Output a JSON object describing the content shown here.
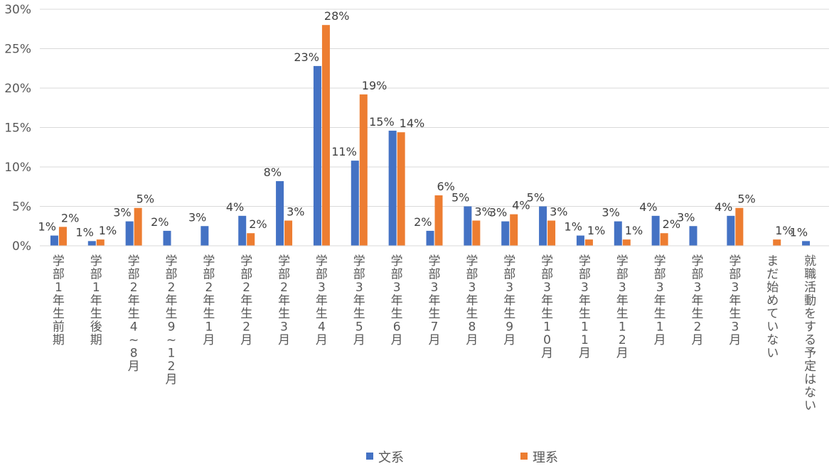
{
  "chart_data": {
    "type": "bar",
    "ylim": [
      0,
      30
    ],
    "ytick_values": [
      0,
      5,
      10,
      15,
      20,
      25,
      30
    ],
    "ytick_labels": [
      "0%",
      "5%",
      "10%",
      "15%",
      "20%",
      "25%",
      "30%"
    ],
    "grid": true,
    "legend_position": "bottom",
    "categories": [
      "学部1年生前期",
      "学部1年生後期",
      "学部2年生4~8月",
      "学部2年生9~12月",
      "学部2年生1月",
      "学部2年生2月",
      "学部2年生3月",
      "学部3年生4月",
      "学部3年生5月",
      "学部3年生6月",
      "学部3年生7月",
      "学部3年生8月",
      "学部3年生9月",
      "学部3年生10月",
      "学部3年生11月",
      "学部3年生12月",
      "学部3年生1月",
      "学部3年生2月",
      "学部3年生3月",
      "まだ始めていない",
      "就職活動をする予定はない"
    ],
    "category_lines": [
      [
        "学",
        "部",
        "1",
        "年",
        "生",
        "前",
        "期"
      ],
      [
        "学",
        "部",
        "1",
        "年",
        "生",
        "後",
        "期"
      ],
      [
        "学",
        "部",
        "2",
        "年",
        "生",
        "4",
        "~",
        "8",
        "月"
      ],
      [
        "学",
        "部",
        "2",
        "年",
        "生",
        "9",
        "~",
        "1",
        "2",
        "月"
      ],
      [
        "学",
        "部",
        "2",
        "年",
        "生",
        "1",
        "月"
      ],
      [
        "学",
        "部",
        "2",
        "年",
        "生",
        "2",
        "月"
      ],
      [
        "学",
        "部",
        "2",
        "年",
        "生",
        "3",
        "月"
      ],
      [
        "学",
        "部",
        "3",
        "年",
        "生",
        "4",
        "月"
      ],
      [
        "学",
        "部",
        "3",
        "年",
        "生",
        "5",
        "月"
      ],
      [
        "学",
        "部",
        "3",
        "年",
        "生",
        "6",
        "月"
      ],
      [
        "学",
        "部",
        "3",
        "年",
        "生",
        "7",
        "月"
      ],
      [
        "学",
        "部",
        "3",
        "年",
        "生",
        "8",
        "月"
      ],
      [
        "学",
        "部",
        "3",
        "年",
        "生",
        "9",
        "月"
      ],
      [
        "学",
        "部",
        "3",
        "年",
        "生",
        "1",
        "0",
        "月"
      ],
      [
        "学",
        "部",
        "3",
        "年",
        "生",
        "1",
        "1",
        "月"
      ],
      [
        "学",
        "部",
        "3",
        "年",
        "生",
        "1",
        "2",
        "月"
      ],
      [
        "学",
        "部",
        "3",
        "年",
        "生",
        "1",
        "月"
      ],
      [
        "学",
        "部",
        "3",
        "年",
        "生",
        "2",
        "月"
      ],
      [
        "学",
        "部",
        "3",
        "年",
        "生",
        "3",
        "月"
      ],
      [
        "ま",
        "だ",
        "始",
        "め",
        "て",
        "い",
        "な",
        "い"
      ],
      [
        "就",
        "職",
        "活",
        "動",
        "を",
        "す",
        "る",
        "予",
        "定",
        "は",
        "な",
        "い"
      ]
    ],
    "series": [
      {
        "name": "文系",
        "color": "#4472C4",
        "values": [
          1.3,
          0.6,
          3.1,
          1.9,
          2.5,
          3.8,
          8.2,
          22.8,
          10.8,
          14.6,
          1.9,
          5.0,
          3.1,
          5.0,
          1.3,
          3.1,
          3.8,
          2.5,
          3.8,
          0,
          0.6
        ],
        "labels": [
          "1%",
          "1%",
          "3%",
          "2%",
          "3%",
          "4%",
          "8%",
          "23%",
          "11%",
          "15%",
          "2%",
          "5%",
          "3%",
          "5%",
          "1%",
          "3%",
          "4%",
          "3%",
          "4%",
          "",
          "1%"
        ]
      },
      {
        "name": "理系",
        "color": "#ED7D31",
        "values": [
          2.4,
          0.8,
          4.8,
          0,
          0,
          1.6,
          3.2,
          28.0,
          19.2,
          14.4,
          6.4,
          3.2,
          4.0,
          3.2,
          0.8,
          0.8,
          1.6,
          0,
          4.8,
          0.8,
          0
        ],
        "labels": [
          "2%",
          "1%",
          "5%",
          "",
          "",
          "2%",
          "3%",
          "28%",
          "19%",
          "14%",
          "6%",
          "3%",
          "4%",
          "3%",
          "1%",
          "1%",
          "2%",
          "",
          "5%",
          "1%",
          ""
        ]
      }
    ]
  }
}
